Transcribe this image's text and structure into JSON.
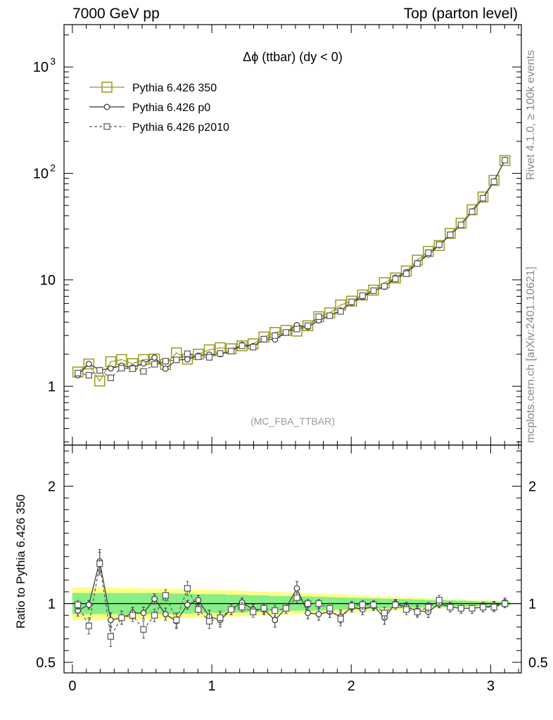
{
  "header": {
    "left": "7000 GeV pp",
    "right": "Top (parton level)"
  },
  "side": {
    "rivet": "Rivet 4.1.0, ≥ 100k events",
    "mcplots": "mcplots.cern.ch [arXiv:2401.10621]"
  },
  "chart_data": [
    {
      "type": "line",
      "title": "Δϕ (ttbar) (dy < 0)",
      "watermark": "(MC_FBA_TTBAR)",
      "yscale": "log",
      "xlim": [
        -0.06,
        3.22
      ],
      "ylim": [
        0.28,
        2500
      ],
      "y_tick_labels": [
        "1",
        "10",
        "10",
        "10"
      ],
      "y_tick_exponents": [
        "",
        "",
        "2",
        "3"
      ],
      "x": [
        0.039,
        0.118,
        0.196,
        0.275,
        0.353,
        0.432,
        0.51,
        0.589,
        0.668,
        0.746,
        0.825,
        0.903,
        0.982,
        1.06,
        1.139,
        1.217,
        1.296,
        1.374,
        1.453,
        1.532,
        1.61,
        1.689,
        1.767,
        1.846,
        1.924,
        2.003,
        2.081,
        2.16,
        2.238,
        2.317,
        2.395,
        2.474,
        2.553,
        2.631,
        2.71,
        2.788,
        2.867,
        2.945,
        3.024,
        3.102
      ],
      "series": [
        {
          "name": "Pythia 6.426 350",
          "color": "#9a9a1e",
          "marker": "square-large",
          "values": [
            1.36,
            1.62,
            1.12,
            1.7,
            1.78,
            1.63,
            1.78,
            1.8,
            1.6,
            2.06,
            1.8,
            2.0,
            2.2,
            2.3,
            2.25,
            2.4,
            2.5,
            2.9,
            3.2,
            3.35,
            3.3,
            3.7,
            4.5,
            4.9,
            5.8,
            6.3,
            7.2,
            8.0,
            9.4,
            10.4,
            12.1,
            15.3,
            18.5,
            21.0,
            27.3,
            34.0,
            45.5,
            60.0,
            86.0,
            132.0
          ]
        },
        {
          "name": "Pythia 6.426 p0",
          "color": "#333333",
          "marker": "circle",
          "values": [
            1.27,
            1.62,
            1.42,
            1.47,
            1.56,
            1.5,
            1.64,
            1.86,
            1.46,
            1.76,
            1.79,
            1.94,
            1.98,
            2.0,
            2.14,
            2.45,
            2.38,
            2.75,
            2.75,
            3.2,
            3.75,
            3.6,
            4.15,
            4.6,
            5.15,
            6.1,
            6.9,
            7.9,
            8.6,
            10.5,
            11.8,
            14.4,
            17.3,
            21.1,
            26.4,
            32.7,
            44.0,
            58.5,
            84.0,
            134.0
          ]
        },
        {
          "name": "Pythia 6.426 p2010",
          "color": "#555555",
          "marker": "square-small",
          "dashed": true,
          "values": [
            1.33,
            1.27,
            1.41,
            1.2,
            1.48,
            1.46,
            1.38,
            1.61,
            1.72,
            1.77,
            2.02,
            1.89,
            1.87,
            2.03,
            2.14,
            2.4,
            2.33,
            2.77,
            2.99,
            3.2,
            3.45,
            3.7,
            4.5,
            4.6,
            5.05,
            6.2,
            7.1,
            7.9,
            8.7,
            10.2,
            11.4,
            14.2,
            18.0,
            21.4,
            26.5,
            32.8,
            43.6,
            58.5,
            83.5,
            133.0
          ]
        }
      ]
    },
    {
      "type": "line",
      "ylabel": "Ratio to Pythia 6.426 350",
      "xlim": [
        -0.06,
        3.22
      ],
      "ylim": [
        0.41,
        2.35
      ],
      "x_tick_labels": [
        "0",
        "1",
        "2",
        "3"
      ],
      "y_tick_labels": [
        "0.5",
        "1",
        "2"
      ],
      "reference": 1,
      "band_inner_halfwidth": [
        0.09,
        0.09,
        0.09,
        0.09,
        0.09,
        0.09,
        0.09,
        0.09,
        0.09,
        0.085,
        0.085,
        0.08,
        0.08,
        0.08,
        0.075,
        0.075,
        0.07,
        0.07,
        0.065,
        0.065,
        0.06,
        0.06,
        0.058,
        0.055,
        0.052,
        0.05,
        0.048,
        0.045,
        0.042,
        0.04,
        0.038,
        0.035,
        0.032,
        0.03,
        0.028,
        0.025,
        0.022,
        0.02,
        0.018,
        0.015
      ],
      "band_outer_halfwidth": [
        0.14,
        0.14,
        0.14,
        0.14,
        0.135,
        0.135,
        0.13,
        0.13,
        0.13,
        0.125,
        0.125,
        0.12,
        0.12,
        0.115,
        0.115,
        0.11,
        0.105,
        0.1,
        0.1,
        0.095,
        0.09,
        0.09,
        0.085,
        0.08,
        0.078,
        0.075,
        0.07,
        0.065,
        0.06,
        0.058,
        0.055,
        0.05,
        0.045,
        0.04,
        0.038,
        0.035,
        0.03,
        0.028,
        0.025,
        0.02
      ],
      "series": [
        {
          "name": "Pythia 6.426 p0",
          "color": "#333333",
          "marker": "circle",
          "values": [
            0.94,
            0.99,
            1.36,
            0.86,
            0.88,
            0.92,
            0.92,
            1.04,
            0.91,
            0.85,
            0.99,
            1.03,
            0.89,
            0.86,
            0.95,
            1.01,
            0.95,
            0.95,
            0.86,
            0.96,
            1.13,
            0.92,
            0.91,
            0.93,
            0.89,
            0.97,
            0.95,
            0.98,
            0.88,
            1.0,
            0.97,
            0.94,
            0.93,
            1.0,
            0.97,
            0.96,
            0.96,
            0.97,
            0.98,
            1.01
          ]
        },
        {
          "name": "Pythia 6.426 p2010",
          "color": "#555555",
          "marker": "square-small",
          "dashed": true,
          "values": [
            0.99,
            0.81,
            1.34,
            0.72,
            0.88,
            0.9,
            0.78,
            0.9,
            1.07,
            0.86,
            1.13,
            0.95,
            0.85,
            0.88,
            0.95,
            0.97,
            0.93,
            0.96,
            0.94,
            0.96,
            1.05,
            1.0,
            1.0,
            0.96,
            0.87,
            0.98,
            0.99,
            0.99,
            0.92,
            0.99,
            0.95,
            0.93,
            0.97,
            1.03,
            0.97,
            0.96,
            0.96,
            0.97,
            0.97,
            1.0
          ]
        }
      ]
    }
  ]
}
